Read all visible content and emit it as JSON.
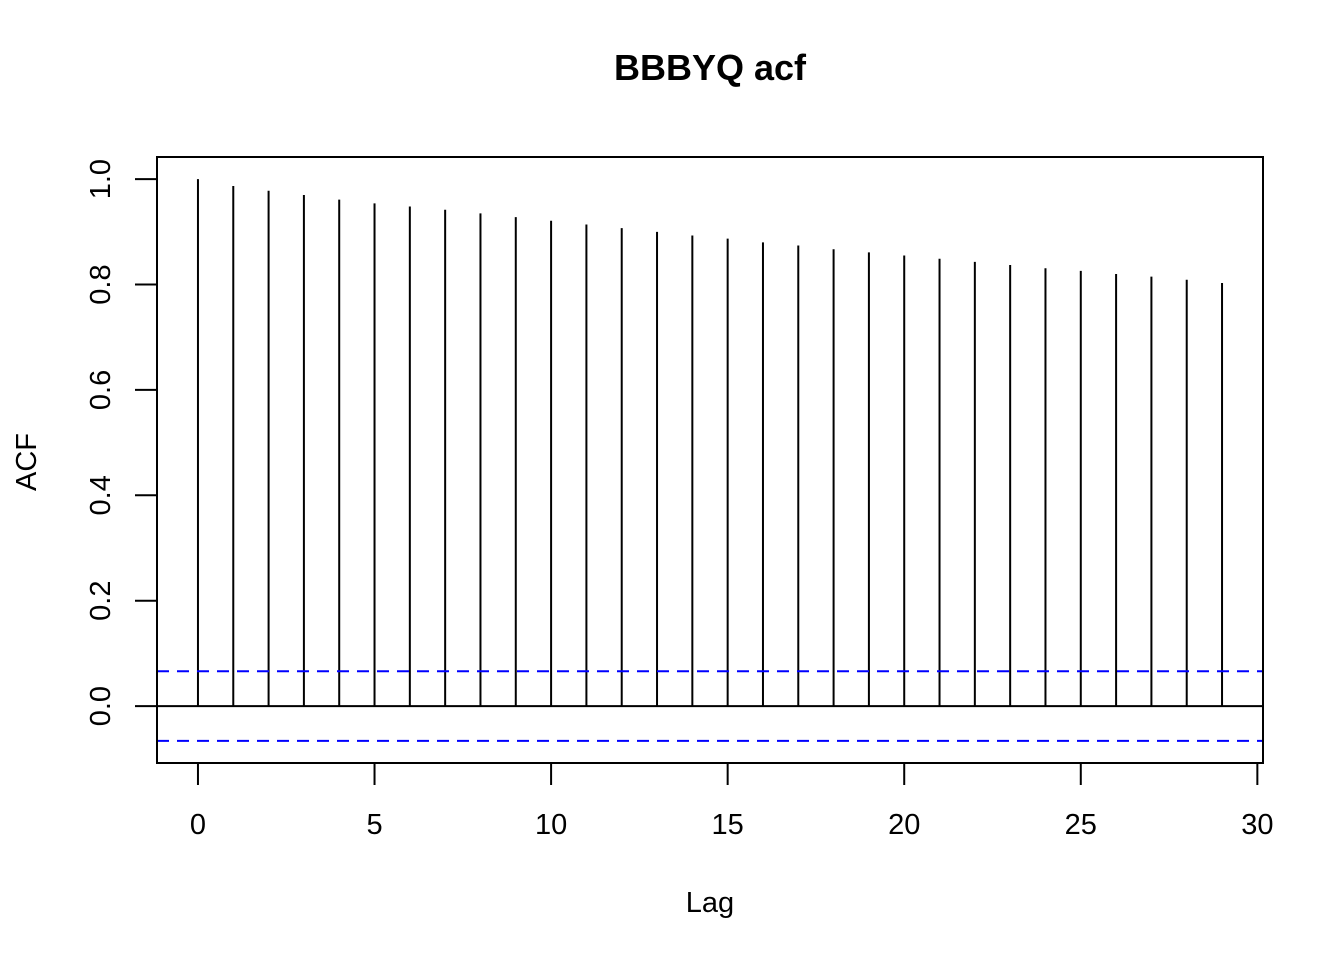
{
  "chart_data": {
    "type": "bar",
    "subtype": "acf-stem",
    "title": "BBBYQ acf",
    "xlabel": "Lag",
    "ylabel": "ACF",
    "xlim": [
      -1.16,
      30.16
    ],
    "ylim": [
      -0.108,
      1.042
    ],
    "x_ticks": [
      0,
      5,
      10,
      15,
      20,
      25,
      30
    ],
    "x_tick_labels": [
      "0",
      "5",
      "10",
      "15",
      "20",
      "25",
      "30"
    ],
    "y_ticks": [
      0.0,
      0.2,
      0.4,
      0.6,
      0.8,
      1.0
    ],
    "y_tick_labels": [
      "0.0",
      "0.2",
      "0.4",
      "0.6",
      "0.8",
      "1.0"
    ],
    "lags": [
      0,
      1,
      2,
      3,
      4,
      5,
      6,
      7,
      8,
      9,
      10,
      11,
      12,
      13,
      14,
      15,
      16,
      17,
      18,
      19,
      20,
      21,
      22,
      23,
      24,
      25,
      26,
      27,
      28,
      29
    ],
    "values": [
      1.0,
      0.987,
      0.978,
      0.97,
      0.961,
      0.954,
      0.948,
      0.942,
      0.935,
      0.928,
      0.921,
      0.914,
      0.907,
      0.9,
      0.893,
      0.887,
      0.88,
      0.874,
      0.867,
      0.861,
      0.855,
      0.849,
      0.843,
      0.837,
      0.831,
      0.826,
      0.82,
      0.815,
      0.809,
      0.803
    ],
    "confidence_bound": 0.066,
    "colors": {
      "stems": "#000000",
      "zero_line": "#000000",
      "confidence_lines": "#0000ff"
    },
    "grid": false,
    "legend": "none"
  }
}
